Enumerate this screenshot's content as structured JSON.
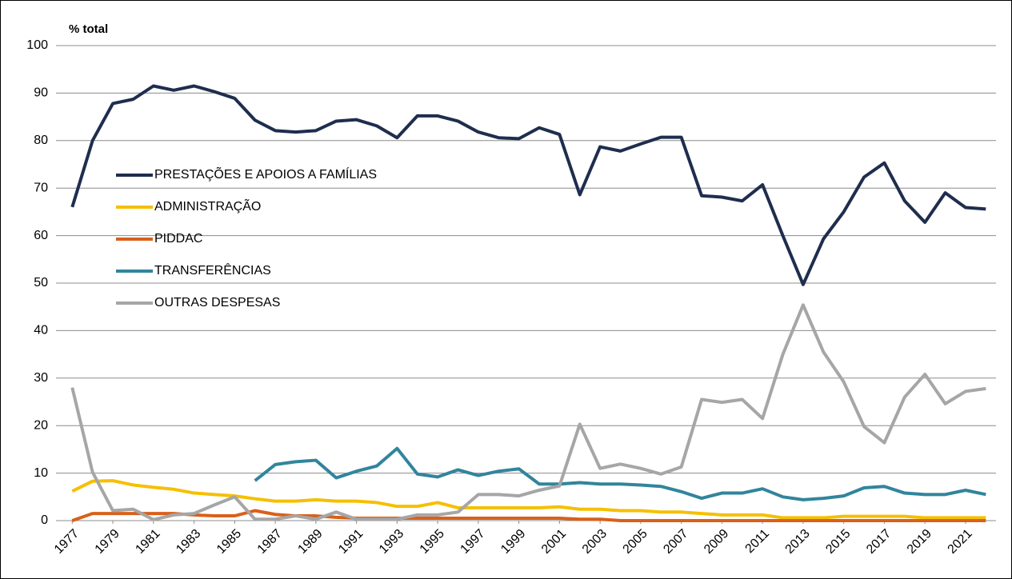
{
  "chart_data": {
    "type": "line",
    "ylabel": "% total",
    "x": [
      1977,
      1978,
      1979,
      1980,
      1981,
      1982,
      1983,
      1984,
      1985,
      1986,
      1987,
      1988,
      1989,
      1990,
      1991,
      1992,
      1993,
      1994,
      1995,
      1996,
      1997,
      1998,
      1999,
      2000,
      2001,
      2002,
      2003,
      2004,
      2005,
      2006,
      2007,
      2008,
      2009,
      2010,
      2011,
      2012,
      2013,
      2014,
      2015,
      2016,
      2017,
      2018,
      2019,
      2020,
      2021,
      2022
    ],
    "xlim": [
      1976.2,
      2022.5
    ],
    "xticks": [
      1977,
      1979,
      1981,
      1983,
      1985,
      1987,
      1989,
      1991,
      1993,
      1995,
      1997,
      1999,
      2001,
      2003,
      2005,
      2007,
      2009,
      2011,
      2013,
      2015,
      2017,
      2019,
      2021
    ],
    "ylim": [
      0,
      100
    ],
    "yticks": [
      0,
      10,
      20,
      30,
      40,
      50,
      60,
      70,
      80,
      90,
      100
    ],
    "grid": true,
    "legend": "left",
    "series": [
      {
        "name": "PRESTAÇÕES E APOIOS A FAMÍLIAS",
        "color": "#1f2d4e",
        "values": [
          66,
          80,
          87.8,
          88.7,
          91.5,
          90.6,
          91.5,
          90.3,
          88.9,
          84.3,
          82.1,
          81.8,
          82.1,
          84.1,
          84.4,
          83.1,
          80.6,
          85.2,
          85.2,
          84.1,
          81.8,
          80.6,
          80.4,
          82.7,
          81.3,
          68.6,
          78.7,
          77.8,
          79.3,
          80.7,
          80.7,
          68.4,
          68.1,
          67.3,
          70.7,
          60,
          49.7,
          59.3,
          65,
          72.3,
          75.3,
          67.3,
          62.8,
          69,
          65.9,
          65.6
        ]
      },
      {
        "name": "ADMINISTRAÇÃO",
        "color": "#f5c000",
        "values": [
          6.2,
          8.3,
          8.4,
          7.5,
          7,
          6.6,
          5.8,
          5.5,
          5.2,
          4.6,
          4.1,
          4.1,
          4.4,
          4.1,
          4.1,
          3.8,
          3,
          3,
          3.8,
          2.7,
          2.7,
          2.7,
          2.7,
          2.7,
          2.9,
          2.4,
          2.4,
          2.1,
          2.1,
          1.8,
          1.8,
          1.5,
          1.2,
          1.2,
          1.2,
          0.6,
          0.6,
          0.6,
          0.9,
          0.9,
          0.9,
          0.9,
          0.6,
          0.6,
          0.6,
          0.6
        ]
      },
      {
        "name": "PIDDAC",
        "color": "#d9601a",
        "values": [
          0,
          1.5,
          1.5,
          1.5,
          1.5,
          1.5,
          1.2,
          1,
          1,
          2.1,
          1.3,
          1,
          1,
          0.7,
          0.5,
          0.5,
          0.5,
          0.5,
          0.5,
          0.5,
          0.5,
          0.5,
          0.5,
          0.5,
          0.5,
          0.3,
          0.3,
          0,
          0,
          0,
          0,
          0,
          0,
          0,
          0,
          0,
          0,
          0,
          0,
          0,
          0,
          0,
          0,
          0,
          0,
          0
        ]
      },
      {
        "name": "TRANSFERÊNCIAS",
        "color": "#31859c",
        "values": [
          null,
          null,
          null,
          null,
          null,
          null,
          null,
          null,
          null,
          8.4,
          11.8,
          12.4,
          12.7,
          9,
          10.4,
          11.5,
          15.2,
          9.8,
          9.2,
          10.7,
          9.5,
          10.4,
          10.9,
          7.7,
          7.7,
          8,
          7.7,
          7.7,
          7.5,
          7.2,
          6.1,
          4.7,
          5.8,
          5.8,
          6.7,
          5,
          4.4,
          4.7,
          5.2,
          6.9,
          7.2,
          5.8,
          5.5,
          5.5,
          6.4,
          5.5
        ]
      },
      {
        "name": "OUTRAS DESPESAS",
        "color": "#a6a6a6",
        "values": [
          28,
          10.2,
          2.1,
          2.4,
          0.2,
          1.2,
          1.5,
          3.3,
          5,
          0.3,
          0.3,
          1,
          0.3,
          1.8,
          0.3,
          0.3,
          0.3,
          1.2,
          1.2,
          1.8,
          5.5,
          5.5,
          5.2,
          6.4,
          7.3,
          20.3,
          11,
          11.9,
          11,
          9.8,
          11.3,
          25.5,
          24.9,
          25.5,
          21.5,
          35,
          45.4,
          35.5,
          29.2,
          19.8,
          16.4,
          26,
          30.8,
          24.6,
          27.2,
          27.8
        ]
      }
    ]
  }
}
